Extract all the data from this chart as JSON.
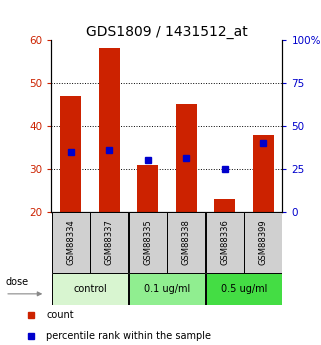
{
  "title": "GDS1809 / 1431512_at",
  "samples": [
    "GSM88334",
    "GSM88337",
    "GSM88335",
    "GSM88338",
    "GSM88336",
    "GSM88399"
  ],
  "bar_values": [
    47,
    58,
    31,
    45,
    23,
    38
  ],
  "blue_marker_values": [
    34,
    34.5,
    32,
    32.5,
    30,
    36
  ],
  "ylim_left": [
    20,
    60
  ],
  "ylim_right": [
    0,
    100
  ],
  "yticks_left": [
    20,
    30,
    40,
    50,
    60
  ],
  "yticks_right": [
    0,
    25,
    50,
    75,
    100
  ],
  "bar_bottom": 20,
  "bar_color": "#cc2200",
  "marker_color": "#0000cc",
  "groups": [
    {
      "label": "control",
      "indices": [
        0,
        1
      ],
      "color": "#d8f5d0"
    },
    {
      "label": "0.1 ug/ml",
      "indices": [
        2,
        3
      ],
      "color": "#90ee90"
    },
    {
      "label": "0.5 ug/ml",
      "indices": [
        4,
        5
      ],
      "color": "#44dd44"
    }
  ],
  "dose_label": "dose",
  "legend_count_label": "count",
  "legend_pct_label": "percentile rank within the sample",
  "grid_yticks": [
    30,
    40,
    50
  ],
  "sample_bg_color": "#d0d0d0",
  "title_fontsize": 10,
  "axis_label_color_left": "#cc2200",
  "axis_label_color_right": "#0000cc",
  "tick_fontsize": 7.5
}
